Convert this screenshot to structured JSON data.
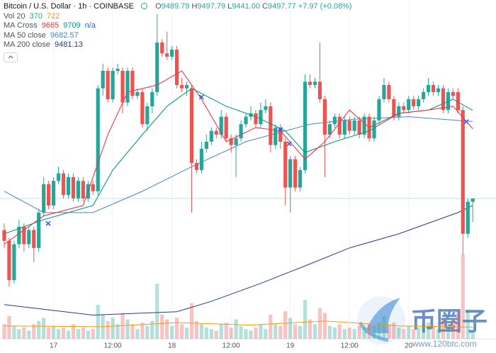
{
  "header": {
    "symbol": "Bitcoin / U.S. Dollar · 1h · COINBASE",
    "ohlc": [
      {
        "label": "O",
        "value": "9489.79"
      },
      {
        "label": "H",
        "value": "9497.79"
      },
      {
        "label": "L",
        "value": "9441.00"
      },
      {
        "label": "C",
        "value": "9497.77"
      }
    ],
    "change": "+7.97 (+0.08%)",
    "ohlc_color": "#26a69a"
  },
  "indicators": [
    {
      "name": "Vol 20",
      "values": [
        "370",
        "722"
      ],
      "colors": [
        "#26a69a",
        "#ff9800"
      ]
    },
    {
      "name": "MA Cross",
      "values": [
        "9665",
        "9709",
        "n/a"
      ],
      "colors": [
        "#f23645",
        "#089981",
        "#2962ff"
      ]
    },
    {
      "name": "MA 50 close",
      "values": [
        "9682.57"
      ],
      "colors": [
        "#4a86c5"
      ]
    },
    {
      "name": "MA 200 close",
      "values": [
        "9481.13"
      ],
      "colors": [
        "#1e3f8a"
      ]
    }
  ],
  "watermark": {
    "brand": "币圈子",
    "site": "www.120btc.com"
  },
  "chart_data": {
    "type": "candlestick",
    "up_color": "#26a69a",
    "down_color": "#ef5350",
    "xlim": [
      -0.86,
      99.71
    ],
    "ylim": [
      9161,
      9974
    ],
    "vlim": [
      0,
      7000
    ],
    "xticks": [
      {
        "value": 10,
        "label": "17"
      },
      {
        "value": 22,
        "label": "12:00"
      },
      {
        "value": 34,
        "label": "18"
      },
      {
        "value": 46,
        "label": "12:00"
      },
      {
        "value": 58,
        "label": "19"
      },
      {
        "value": 70,
        "label": "12:00"
      },
      {
        "value": 82,
        "label": "20"
      }
    ],
    "grid": true,
    "open": [
      9422,
      9396,
      9302,
      9388,
      9430,
      9388,
      9422,
      9379,
      9464,
      9532,
      9481,
      9540,
      9558,
      9506,
      9549,
      9498,
      9540,
      9498,
      9532,
      9515,
      9762,
      9804,
      9736,
      9804,
      9804,
      9728,
      9804,
      9744,
      9753,
      9676,
      9719,
      9753,
      9872,
      9846,
      9838,
      9855,
      9770,
      9762,
      9762,
      9583,
      9566,
      9617,
      9634,
      9660,
      9651,
      9694,
      9642,
      9626,
      9642,
      9676,
      9694,
      9702,
      9676,
      9710,
      9719,
      9626,
      9668,
      9634,
      9524,
      9592,
      9524,
      9566,
      9778,
      9770,
      9778,
      9736,
      9651,
      9676,
      9694,
      9651,
      9685,
      9660,
      9685,
      9651,
      9694,
      9642,
      9685,
      9736,
      9770,
      9736,
      9694,
      9719,
      9710,
      9736,
      9719,
      9736,
      9753,
      9770,
      9753,
      9762,
      9710,
      9753,
      9753,
      9710,
      9413,
      9489.79
    ],
    "high": [
      9438,
      9404,
      9396,
      9447,
      9438,
      9430,
      9430,
      9472,
      9549,
      9540,
      9549,
      9574,
      9566,
      9558,
      9558,
      9549,
      9549,
      9540,
      9540,
      9770,
      9821,
      9812,
      9812,
      9821,
      9812,
      9812,
      9812,
      9762,
      9762,
      9728,
      9762,
      9940,
      9880,
      9898,
      9864,
      9864,
      9787,
      9778,
      9770,
      9592,
      9634,
      9651,
      9668,
      9668,
      9710,
      9702,
      9651,
      9651,
      9685,
      9702,
      9719,
      9710,
      9728,
      9736,
      9728,
      9676,
      9676,
      9642,
      9600,
      9600,
      9574,
      9796,
      9796,
      9787,
      9872,
      9744,
      9685,
      9702,
      9702,
      9694,
      9694,
      9694,
      9694,
      9702,
      9702,
      9694,
      9744,
      9787,
      9778,
      9744,
      9728,
      9728,
      9744,
      9744,
      9744,
      9762,
      9787,
      9778,
      9770,
      9770,
      9762,
      9762,
      9762,
      9719,
      9498,
      9497.79
    ],
    "low": [
      9379,
      9286,
      9294,
      9379,
      9370,
      9379,
      9345,
      9370,
      9456,
      9472,
      9472,
      9532,
      9498,
      9498,
      9490,
      9490,
      9490,
      9490,
      9506,
      9506,
      9744,
      9728,
      9728,
      9796,
      9702,
      9719,
      9736,
      9736,
      9668,
      9660,
      9702,
      9744,
      9838,
      9830,
      9830,
      9762,
      9753,
      9744,
      9464,
      9558,
      9558,
      9608,
      9626,
      9642,
      9642,
      9634,
      9608,
      9549,
      9634,
      9668,
      9685,
      9668,
      9668,
      9702,
      9608,
      9617,
      9617,
      9481,
      9464,
      9515,
      9515,
      9558,
      9762,
      9762,
      9728,
      9549,
      9642,
      9668,
      9642,
      9642,
      9651,
      9651,
      9642,
      9642,
      9634,
      9634,
      9676,
      9728,
      9728,
      9685,
      9685,
      9702,
      9702,
      9710,
      9710,
      9728,
      9744,
      9744,
      9744,
      9702,
      9702,
      9736,
      9702,
      9362,
      9404,
      9441
    ],
    "close": [
      9396,
      9302,
      9388,
      9430,
      9388,
      9422,
      9379,
      9464,
      9532,
      9481,
      9540,
      9558,
      9506,
      9549,
      9498,
      9540,
      9498,
      9532,
      9515,
      9762,
      9804,
      9736,
      9804,
      9809,
      9728,
      9804,
      9744,
      9753,
      9676,
      9719,
      9753,
      9872,
      9846,
      9838,
      9855,
      9770,
      9762,
      9770,
      9583,
      9566,
      9617,
      9634,
      9660,
      9651,
      9694,
      9642,
      9626,
      9642,
      9676,
      9694,
      9702,
      9676,
      9710,
      9719,
      9626,
      9668,
      9634,
      9524,
      9592,
      9524,
      9566,
      9778,
      9770,
      9778,
      9736,
      9651,
      9676,
      9694,
      9651,
      9685,
      9660,
      9685,
      9651,
      9694,
      9642,
      9685,
      9736,
      9770,
      9736,
      9694,
      9719,
      9710,
      9736,
      9719,
      9736,
      9753,
      9770,
      9753,
      9762,
      9710,
      9753,
      9744,
      9710,
      9413,
      9490,
      9497.77
    ],
    "volume": [
      900,
      1400,
      800,
      600,
      700,
      500,
      900,
      1100,
      1300,
      700,
      800,
      600,
      700,
      500,
      900,
      600,
      700,
      500,
      600,
      2100,
      1500,
      1100,
      1300,
      900,
      1600,
      1200,
      900,
      600,
      1000,
      800,
      1100,
      3400,
      1500,
      1200,
      800,
      1300,
      900,
      700,
      2200,
      1100,
      900,
      700,
      600,
      500,
      900,
      1000,
      700,
      1200,
      800,
      600,
      500,
      700,
      900,
      600,
      1500,
      900,
      800,
      1700,
      1300,
      900,
      800,
      2400,
      1200,
      900,
      1900,
      1600,
      800,
      700,
      900,
      600,
      700,
      600,
      800,
      700,
      900,
      800,
      1000,
      1400,
      900,
      1000,
      700,
      600,
      800,
      600,
      700,
      900,
      1000,
      800,
      600,
      1200,
      900,
      1100,
      1700,
      5200,
      1800,
      370
    ],
    "volume_ma": {
      "color": "#ff9800",
      "x": [
        0,
        20,
        35,
        50,
        65,
        80,
        95
      ],
      "values": [
        800,
        750,
        1000,
        850,
        1100,
        800,
        722
      ]
    },
    "overlays": [
      {
        "color": "#1e3f8a",
        "x": [
          0,
          18,
          35,
          42,
          52,
          61,
          70,
          80,
          92,
          95
        ],
        "values": [
          9243,
          9218,
          9226,
          9251,
          9294,
          9336,
          9379,
          9413,
          9464,
          9481.13
        ]
      },
      {
        "color": "#4a86c5",
        "x": [
          0,
          8,
          18,
          28,
          38,
          49,
          62,
          71,
          82,
          92,
          95
        ],
        "values": [
          9515,
          9464,
          9464,
          9515,
          9574,
          9634,
          9676,
          9688,
          9694,
          9685,
          9682.57
        ]
      },
      {
        "color": "#089981",
        "x": [
          0,
          8,
          18,
          22,
          28,
          33,
          38,
          45,
          51,
          57,
          61,
          67,
          74,
          80,
          86,
          91,
          95
        ],
        "values": [
          9413,
          9447,
          9481,
          9566,
          9651,
          9719,
          9762,
          9719,
          9694,
          9660,
          9608,
          9634,
          9660,
          9702,
          9710,
          9736,
          9709
        ]
      },
      {
        "color": "#f23645",
        "x": [
          0,
          8,
          16,
          21,
          25,
          31,
          36,
          40,
          45,
          51,
          56,
          61,
          65,
          70,
          74,
          80,
          86,
          91,
          95
        ],
        "values": [
          9388,
          9456,
          9481,
          9651,
          9753,
          9770,
          9804,
          9736,
          9634,
          9668,
          9660,
          9592,
          9634,
          9710,
          9668,
          9702,
          9710,
          9719,
          9665
        ]
      }
    ],
    "cross_markers": {
      "color": "#2962ff",
      "x": [
        8.9,
        40,
        56,
        57.8,
        93.7
      ],
      "values": [
        9438,
        9741,
        9663,
        9629,
        9682
      ]
    }
  }
}
